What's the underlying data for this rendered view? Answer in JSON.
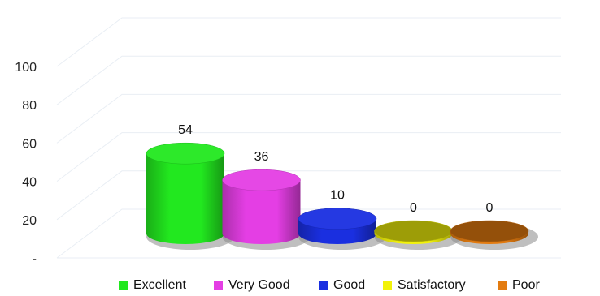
{
  "chart_data": {
    "type": "bar",
    "style": "3d-cylinder",
    "categories": [
      "Excellent",
      "Very Good",
      "Good",
      "Satisfactory",
      "Poor"
    ],
    "values": [
      54,
      36,
      10,
      0,
      0
    ],
    "data_labels": [
      "54",
      "36",
      "10",
      "0",
      "0"
    ],
    "colors": [
      "#22e81f",
      "#e43ee4",
      "#1a2fe0",
      "#f2f20a",
      "#e37b10"
    ],
    "y_ticks": [
      {
        "value": 0,
        "label": "-"
      },
      {
        "value": 20,
        "label": "20"
      },
      {
        "value": 40,
        "label": "40"
      },
      {
        "value": 60,
        "label": "60"
      },
      {
        "value": 80,
        "label": "80"
      },
      {
        "value": 100,
        "label": "100"
      }
    ],
    "ylim": [
      0,
      100
    ],
    "grid": true,
    "legend_position": "bottom",
    "title": "",
    "xlabel": "",
    "ylabel": ""
  }
}
